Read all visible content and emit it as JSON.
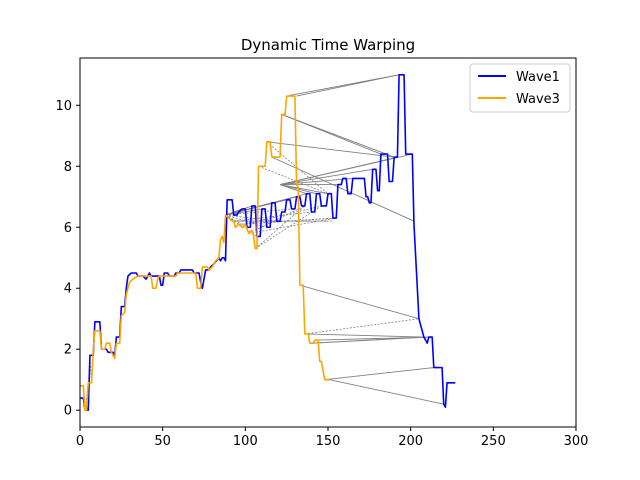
{
  "chart_data": {
    "type": "line",
    "title": "Dynamic Time Warping",
    "xlabel": "",
    "ylabel": "",
    "xlim": [
      0,
      300
    ],
    "ylim": [
      -0.55,
      11.55
    ],
    "xticks": [
      0,
      50,
      100,
      150,
      200,
      250,
      300
    ],
    "yticks": [
      0,
      2,
      4,
      6,
      8,
      10
    ],
    "grid": false,
    "legend_position": "top-right",
    "series": [
      {
        "name": "Wave1",
        "color": "#0000ff",
        "points": [
          [
            0,
            0.4
          ],
          [
            2,
            0.4
          ],
          [
            3,
            0
          ],
          [
            5,
            0
          ],
          [
            6,
            1.8
          ],
          [
            8,
            1.8
          ],
          [
            9,
            2.9
          ],
          [
            12,
            2.9
          ],
          [
            13,
            2.0
          ],
          [
            16,
            2.0
          ],
          [
            17,
            1.9
          ],
          [
            20,
            1.9
          ],
          [
            21,
            1.8
          ],
          [
            22,
            2.4
          ],
          [
            24,
            2.4
          ],
          [
            25,
            3.4
          ],
          [
            27,
            3.4
          ],
          [
            28,
            4.0
          ],
          [
            29,
            4.4
          ],
          [
            31,
            4.5
          ],
          [
            34,
            4.5
          ],
          [
            35,
            4.4
          ],
          [
            38,
            4.4
          ],
          [
            40,
            4.3
          ],
          [
            42,
            4.5
          ],
          [
            43,
            4.4
          ],
          [
            48,
            4.4
          ],
          [
            49,
            4.1
          ],
          [
            50,
            4.1
          ],
          [
            51,
            4.5
          ],
          [
            53,
            4.5
          ],
          [
            54,
            4.4
          ],
          [
            57,
            4.4
          ],
          [
            58,
            4.5
          ],
          [
            60,
            4.5
          ],
          [
            61,
            4.6
          ],
          [
            68,
            4.6
          ],
          [
            69,
            4.5
          ],
          [
            72,
            4.5
          ],
          [
            73,
            4.2
          ],
          [
            74,
            4.0
          ],
          [
            76,
            4.6
          ],
          [
            78,
            4.6
          ],
          [
            79,
            4.7
          ],
          [
            81,
            4.8
          ],
          [
            84,
            5.0
          ],
          [
            85,
            4.9
          ],
          [
            86,
            5.0
          ],
          [
            87,
            5.0
          ],
          [
            88,
            4.9
          ],
          [
            89,
            6.9
          ],
          [
            92,
            6.9
          ],
          [
            93,
            6.4
          ],
          [
            95,
            6.4
          ],
          [
            96,
            6.5
          ],
          [
            98,
            6.6
          ],
          [
            100,
            6.6
          ],
          [
            101,
            6.0
          ],
          [
            103,
            6.0
          ],
          [
            104,
            6.7
          ],
          [
            106,
            6.7
          ],
          [
            107,
            5.7
          ],
          [
            109,
            5.7
          ],
          [
            110,
            6.6
          ],
          [
            112,
            6.6
          ],
          [
            113,
            6.0
          ],
          [
            115,
            6.0
          ],
          [
            116,
            6.8
          ],
          [
            118,
            6.8
          ],
          [
            119,
            6.2
          ],
          [
            121,
            6.2
          ],
          [
            122,
            6.5
          ],
          [
            124,
            6.5
          ],
          [
            125,
            6.9
          ],
          [
            127,
            6.9
          ],
          [
            128,
            6.6
          ],
          [
            130,
            6.6
          ],
          [
            131,
            7.0
          ],
          [
            133,
            7.0
          ],
          [
            134,
            6.7
          ],
          [
            136,
            6.7
          ],
          [
            137,
            7.1
          ],
          [
            139,
            7.1
          ],
          [
            140,
            6.5
          ],
          [
            142,
            6.5
          ],
          [
            143,
            7.1
          ],
          [
            145,
            7.1
          ],
          [
            146,
            6.7
          ],
          [
            149,
            6.7
          ],
          [
            150,
            7.1
          ],
          [
            152,
            7.1
          ],
          [
            153,
            6.3
          ],
          [
            155,
            6.3
          ],
          [
            156,
            7.4
          ],
          [
            158,
            7.4
          ],
          [
            159,
            7.6
          ],
          [
            161,
            7.6
          ],
          [
            162,
            7.1
          ],
          [
            164,
            7.1
          ],
          [
            165,
            7.6
          ],
          [
            172,
            7.6
          ],
          [
            173,
            7.0
          ],
          [
            174,
            7.0
          ],
          [
            175,
            6.8
          ],
          [
            176,
            6.8
          ],
          [
            177,
            7.9
          ],
          [
            179,
            7.9
          ],
          [
            180,
            7.2
          ],
          [
            181,
            7.2
          ],
          [
            182,
            8.4
          ],
          [
            186,
            8.4
          ],
          [
            187,
            7.5
          ],
          [
            189,
            7.5
          ],
          [
            190,
            8.3
          ],
          [
            192,
            8.3
          ],
          [
            193,
            11.0
          ],
          [
            196,
            11.0
          ],
          [
            197,
            8.4
          ],
          [
            201,
            8.4
          ],
          [
            202,
            6.1
          ],
          [
            205,
            3.0
          ],
          [
            208,
            2.4
          ],
          [
            210,
            2.2
          ],
          [
            211,
            2.4
          ],
          [
            213,
            2.4
          ],
          [
            214,
            1.4
          ],
          [
            219,
            1.4
          ],
          [
            220,
            0.2
          ],
          [
            221,
            0.1
          ],
          [
            222,
            0.9
          ],
          [
            227,
            0.9
          ]
        ]
      },
      {
        "name": "Wave3",
        "color": "#ffa500",
        "points": [
          [
            0,
            0.8
          ],
          [
            2,
            0.8
          ],
          [
            3,
            0
          ],
          [
            4,
            0
          ],
          [
            5,
            0.9
          ],
          [
            7,
            0.9
          ],
          [
            8,
            2.0
          ],
          [
            9,
            2.6
          ],
          [
            12,
            2.6
          ],
          [
            13,
            2.0
          ],
          [
            15,
            2.0
          ],
          [
            16,
            2.2
          ],
          [
            18,
            2.2
          ],
          [
            19,
            1.9
          ],
          [
            21,
            1.7
          ],
          [
            22,
            2.2
          ],
          [
            24,
            2.2
          ],
          [
            25,
            3.1
          ],
          [
            27,
            3.2
          ],
          [
            28,
            3.8
          ],
          [
            29,
            4.0
          ],
          [
            30,
            4.2
          ],
          [
            32,
            4.3
          ],
          [
            35,
            4.4
          ],
          [
            43,
            4.4
          ],
          [
            44,
            4.0
          ],
          [
            46,
            4.0
          ],
          [
            47,
            4.3
          ],
          [
            48,
            4.4
          ],
          [
            58,
            4.4
          ],
          [
            59,
            4.5
          ],
          [
            70,
            4.5
          ],
          [
            71,
            4.0
          ],
          [
            73,
            4.0
          ],
          [
            74,
            4.7
          ],
          [
            77,
            4.7
          ],
          [
            78,
            4.6
          ],
          [
            80,
            4.7
          ],
          [
            82,
            4.9
          ],
          [
            84,
            5.0
          ],
          [
            85,
            5.6
          ],
          [
            86,
            5.7
          ],
          [
            87,
            5.5
          ],
          [
            88,
            6.4
          ],
          [
            92,
            6.2
          ],
          [
            93,
            6.2
          ],
          [
            94,
            6.0
          ],
          [
            96,
            6.1
          ],
          [
            98,
            6.0
          ],
          [
            100,
            6.1
          ],
          [
            102,
            5.8
          ],
          [
            104,
            5.9
          ],
          [
            105,
            5.7
          ],
          [
            106,
            5.3
          ],
          [
            107,
            5.3
          ],
          [
            108,
            8.0
          ],
          [
            112,
            8.0
          ],
          [
            113,
            8.8
          ],
          [
            115,
            8.8
          ],
          [
            116,
            8.3
          ],
          [
            121,
            8.3
          ],
          [
            122,
            9.7
          ],
          [
            124,
            9.7
          ],
          [
            125,
            10.3
          ],
          [
            130,
            10.3
          ],
          [
            131,
            7.4
          ],
          [
            132,
            7.3
          ],
          [
            133,
            4.1
          ],
          [
            135,
            4.1
          ],
          [
            136,
            2.5
          ],
          [
            138,
            2.5
          ],
          [
            139,
            2.2
          ],
          [
            141,
            2.2
          ],
          [
            142,
            2.3
          ],
          [
            144,
            2.3
          ],
          [
            145,
            1.6
          ],
          [
            146,
            1.6
          ],
          [
            147,
            1.3
          ],
          [
            148,
            1.0
          ],
          [
            151,
            1.0
          ]
        ]
      }
    ],
    "alignment_lines_solid": [
      [
        [
          131,
          10.3
        ],
        [
          193,
          11.0
        ]
      ],
      [
        [
          125,
          10.3
        ],
        [
          193,
          11.0
        ]
      ],
      [
        [
          122,
          9.7
        ],
        [
          190,
          8.3
        ]
      ],
      [
        [
          122,
          9.7
        ],
        [
          182,
          8.4
        ]
      ],
      [
        [
          113,
          8.8
        ],
        [
          190,
          8.3
        ]
      ],
      [
        [
          116,
          8.3
        ],
        [
          202,
          6.2
        ]
      ],
      [
        [
          121,
          7.4
        ],
        [
          201,
          8.4
        ]
      ],
      [
        [
          121,
          7.4
        ],
        [
          192,
          8.3
        ]
      ],
      [
        [
          121,
          7.4
        ],
        [
          177,
          7.9
        ]
      ],
      [
        [
          121,
          7.4
        ],
        [
          165,
          7.6
        ]
      ],
      [
        [
          121,
          7.4
        ],
        [
          156,
          7.4
        ]
      ],
      [
        [
          121,
          7.4
        ],
        [
          150,
          7.1
        ]
      ],
      [
        [
          121,
          7.4
        ],
        [
          143,
          7.1
        ]
      ],
      [
        [
          121,
          7.4
        ],
        [
          137,
          7.1
        ]
      ],
      [
        [
          88,
          6.4
        ],
        [
          137,
          7.1
        ]
      ],
      [
        [
          88,
          6.4
        ],
        [
          131,
          7.0
        ]
      ],
      [
        [
          88,
          6.4
        ],
        [
          125,
          6.9
        ]
      ],
      [
        [
          88,
          6.4
        ],
        [
          116,
          6.8
        ]
      ],
      [
        [
          88,
          6.4
        ],
        [
          110,
          6.6
        ]
      ],
      [
        [
          88,
          6.4
        ],
        [
          104,
          6.7
        ]
      ],
      [
        [
          88,
          6.4
        ],
        [
          98,
          6.6
        ]
      ],
      [
        [
          133,
          4.1
        ],
        [
          205,
          3.0
        ]
      ],
      [
        [
          136,
          2.5
        ],
        [
          208,
          2.4
        ]
      ],
      [
        [
          141,
          2.2
        ],
        [
          211,
          2.4
        ]
      ],
      [
        [
          144,
          2.3
        ],
        [
          213,
          2.4
        ]
      ],
      [
        [
          148,
          1.0
        ],
        [
          214,
          1.4
        ]
      ],
      [
        [
          151,
          1.0
        ],
        [
          220,
          0.2
        ]
      ]
    ],
    "alignment_lines_dashed": [
      [
        [
          113,
          8.8
        ],
        [
          150,
          7.1
        ]
      ],
      [
        [
          108,
          8.0
        ],
        [
          150,
          7.1
        ]
      ],
      [
        [
          106,
          5.3
        ],
        [
          136,
          6.7
        ]
      ],
      [
        [
          106,
          5.3
        ],
        [
          146,
          6.7
        ]
      ],
      [
        [
          102,
          5.8
        ],
        [
          136,
          6.7
        ]
      ],
      [
        [
          102,
          5.8
        ],
        [
          155,
          6.3
        ]
      ],
      [
        [
          100,
          6.1
        ],
        [
          146,
          6.7
        ]
      ],
      [
        [
          100,
          6.1
        ],
        [
          155,
          6.3
        ]
      ],
      [
        [
          96,
          6.1
        ],
        [
          153,
          6.3
        ]
      ],
      [
        [
          93,
          6.2
        ],
        [
          140,
          6.5
        ]
      ],
      [
        [
          93,
          6.2
        ],
        [
          150,
          6.2
        ]
      ],
      [
        [
          92,
          6.2
        ],
        [
          153,
          6.2
        ]
      ],
      [
        [
          88,
          6.4
        ],
        [
          101,
          6.0
        ]
      ],
      [
        [
          88,
          6.4
        ],
        [
          107,
          5.7
        ]
      ],
      [
        [
          88,
          6.4
        ],
        [
          113,
          6.0
        ]
      ],
      [
        [
          88,
          6.4
        ],
        [
          119,
          6.2
        ]
      ],
      [
        [
          88,
          6.4
        ],
        [
          128,
          6.6
        ]
      ],
      [
        [
          136,
          2.5
        ],
        [
          205,
          3.0
        ]
      ],
      [
        [
          141,
          2.2
        ],
        [
          208,
          2.4
        ]
      ],
      [
        [
          3,
          0
        ],
        [
          5,
          0.9
        ]
      ],
      [
        [
          6,
          1.8
        ],
        [
          7,
          0.9
        ]
      ]
    ]
  }
}
